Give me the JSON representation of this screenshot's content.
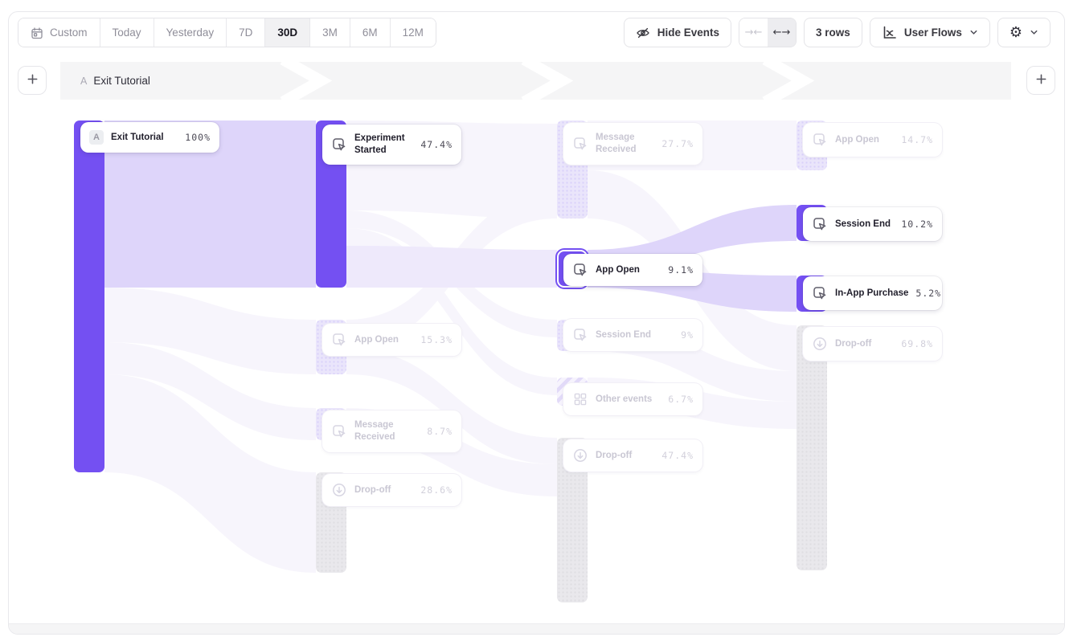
{
  "toolbar": {
    "date_ranges": [
      {
        "label": "Custom",
        "icon": "calendar-icon",
        "selected": false
      },
      {
        "label": "Today",
        "selected": false
      },
      {
        "label": "Yesterday",
        "selected": false
      },
      {
        "label": "7D",
        "selected": false
      },
      {
        "label": "30D",
        "selected": true
      },
      {
        "label": "3M",
        "selected": false
      },
      {
        "label": "6M",
        "selected": false
      },
      {
        "label": "12M",
        "selected": false
      }
    ],
    "hide_events": {
      "label": "Hide Events",
      "icon": "eye-off-icon"
    },
    "width_toggle": {
      "collapse_icon": "arrows-collapse-icon",
      "expand_icon": "arrows-expand-icon",
      "active": "expand",
      "collapse_glyph": "→←",
      "expand_glyph": "←→"
    },
    "rows_button": {
      "label": "3 rows"
    },
    "view_selector": {
      "label": "User Flows",
      "icon": "flows-chart-icon"
    },
    "settings": {
      "icon": "gear-icon",
      "glyph": "⚙"
    },
    "add_step_left": "+",
    "add_step_right": "+"
  },
  "flow_header": {
    "steps": [
      {
        "marker": "A",
        "label": "Exit Tutorial"
      }
    ]
  },
  "chart_data": {
    "type": "sankey",
    "start_event": "Exit Tutorial",
    "columns": [
      {
        "nodes": [
          {
            "label": "Exit Tutorial",
            "pct": "100%",
            "value": 100,
            "state": "active",
            "kind": "start",
            "marker": "A"
          }
        ]
      },
      {
        "nodes": [
          {
            "label": "Experiment Started",
            "pct": "47.4%",
            "value": 47.4,
            "state": "active",
            "kind": "event"
          },
          {
            "label": "App Open",
            "pct": "15.3%",
            "value": 15.3,
            "state": "faded",
            "kind": "event"
          },
          {
            "label": "Message Received",
            "pct": "8.7%",
            "value": 8.7,
            "state": "faded",
            "kind": "event"
          },
          {
            "label": "Drop-off",
            "pct": "28.6%",
            "value": 28.6,
            "state": "faded",
            "kind": "dropoff"
          }
        ]
      },
      {
        "nodes": [
          {
            "label": "Message Received",
            "pct": "27.7%",
            "value": 27.7,
            "state": "faded",
            "kind": "event"
          },
          {
            "label": "App Open",
            "pct": "9.1%",
            "value": 9.1,
            "state": "selected",
            "kind": "event"
          },
          {
            "label": "Session End",
            "pct": "9%",
            "value": 9,
            "state": "faded",
            "kind": "event"
          },
          {
            "label": "Other events",
            "pct": "6.7%",
            "value": 6.7,
            "state": "faded",
            "kind": "other"
          },
          {
            "label": "Drop-off",
            "pct": "47.4%",
            "value": 47.4,
            "state": "faded",
            "kind": "dropoff"
          }
        ]
      },
      {
        "nodes": [
          {
            "label": "App Open",
            "pct": "14.7%",
            "value": 14.7,
            "state": "faded",
            "kind": "event"
          },
          {
            "label": "Session End",
            "pct": "10.2%",
            "value": 10.2,
            "state": "active",
            "kind": "event"
          },
          {
            "label": "In-App Purchase",
            "pct": "5.2%",
            "value": 5.2,
            "state": "active",
            "kind": "event"
          },
          {
            "label": "Drop-off",
            "pct": "69.8%",
            "value": 69.8,
            "state": "faded",
            "kind": "dropoff"
          }
        ]
      }
    ],
    "colors": {
      "accent": "#7450f2",
      "link_strong": "#ded5fa",
      "link_faint": "#f7f5fc",
      "bar_faded_purple": "#eae5fb",
      "bar_gray": "#e9e8ec",
      "header_band": "#f5f5f6"
    }
  }
}
